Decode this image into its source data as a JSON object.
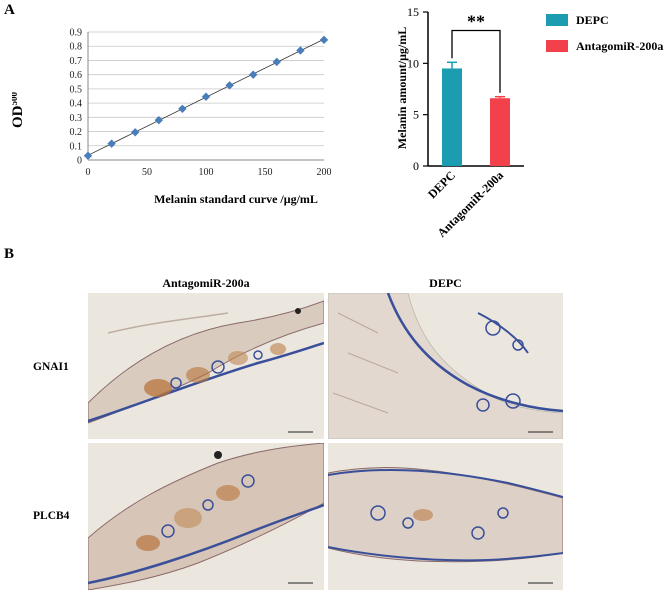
{
  "panels": {
    "a_label": "A",
    "b_label": "B"
  },
  "chart_data": [
    {
      "type": "scatter",
      "title": "",
      "xlabel": "Melanin standard curve /μg/mL",
      "ylabel": "OD",
      "ylabel_subscript": "500",
      "xlim": [
        0,
        200
      ],
      "ylim": [
        0,
        0.9
      ],
      "x_ticks": [
        0,
        50,
        100,
        150,
        200
      ],
      "y_ticks": [
        0,
        0.1,
        0.2,
        0.3,
        0.4,
        0.5,
        0.6,
        0.7,
        0.8,
        0.9
      ],
      "grid": true,
      "trendline": true,
      "series": [
        {
          "x": [
            0,
            20,
            40,
            60,
            80,
            100,
            120,
            140,
            160,
            180,
            200
          ],
          "y": [
            0.03,
            0.115,
            0.195,
            0.28,
            0.36,
            0.445,
            0.525,
            0.6,
            0.69,
            0.77,
            0.845
          ],
          "color": "#4a7ebb"
        }
      ]
    },
    {
      "type": "bar",
      "title": "",
      "xlabel": "",
      "ylabel": "Melanin amount/μg/mL",
      "categories": [
        "DEPC",
        "AntagomiR-200a"
      ],
      "ylim": [
        0,
        15
      ],
      "y_ticks": [
        0,
        5,
        10,
        15
      ],
      "grid": false,
      "legend_position": "top-right",
      "series": [
        {
          "name": "DEPC",
          "values": [
            9.5,
            null
          ],
          "error": [
            0.6,
            null
          ],
          "color": "#1b9cb0"
        },
        {
          "name": "AntagomiR-200a",
          "values": [
            null,
            6.6
          ],
          "error": [
            null,
            0.15
          ],
          "color": "#f2414b"
        }
      ],
      "annotations": [
        {
          "text": "**",
          "between": [
            "DEPC",
            "AntagomiR-200a"
          ]
        }
      ]
    }
  ],
  "legend": {
    "items": [
      {
        "label": "DEPC",
        "color": "#1b9cb0"
      },
      {
        "label": "AntagomiR-200a",
        "color": "#f2414b"
      }
    ]
  },
  "micrographs": {
    "column_headers": [
      "AntagomiR-200a",
      "DEPC"
    ],
    "row_labels": [
      "GNAI1",
      "PLCB4"
    ],
    "background_color": "#ebe7df",
    "tissue_stain_color": "#8a6a6a",
    "nuclei_color": "#3a4f9a",
    "positive_stain_color": "#b8743c"
  }
}
